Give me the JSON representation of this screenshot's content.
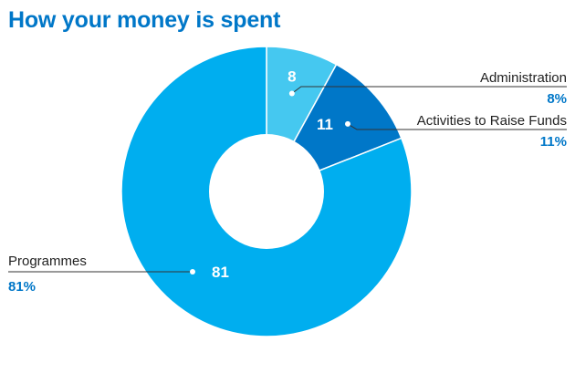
{
  "title": "How your money is spent",
  "colors": {
    "title": "#0077c8",
    "percent_label": "#0077c8"
  },
  "chart_data": {
    "type": "pie",
    "donut": true,
    "title": "How your money is spent",
    "slices": [
      {
        "label": "Administration",
        "value": 8,
        "value_label": "8",
        "percent_label": "8%",
        "color": "#45c8f0"
      },
      {
        "label": "Activities to Raise Funds",
        "value": 11,
        "value_label": "11",
        "percent_label": "11%",
        "color": "#0077c8"
      },
      {
        "label": "Programmes",
        "value": 81,
        "value_label": "81",
        "percent_label": "81%",
        "color": "#00aeef"
      }
    ],
    "legend": "callout labels"
  }
}
